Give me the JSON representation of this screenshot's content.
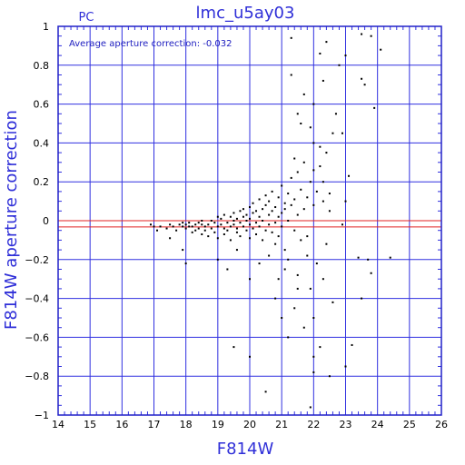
{
  "chart_data": {
    "type": "scatter",
    "title": "lmc_u5ay03",
    "corner_label": "PC",
    "xlabel": "F814W",
    "ylabel": "F814W aperture correction",
    "annotation": "Average aperture correction:  -0.032",
    "xlim": [
      14,
      26
    ],
    "ylim": [
      -1,
      1
    ],
    "x_ticks": [
      "14",
      "15",
      "16",
      "17",
      "18",
      "19",
      "20",
      "21",
      "22",
      "23",
      "24",
      "25",
      "26"
    ],
    "y_ticks": [
      "−1",
      "−0.8",
      "−0.6",
      "−0.4",
      "−0.2",
      "0",
      "0.2",
      "0.4",
      "0.6",
      "0.8",
      "1"
    ],
    "grid": true,
    "reference_lines": [
      {
        "y": 0,
        "color": "#e02020"
      },
      {
        "y": -0.032,
        "color": "#e02020"
      }
    ],
    "colors": {
      "frame": "#2020c8",
      "grid": "#3030e0",
      "points": "#000000",
      "text": "#2f2fd8"
    },
    "series": [
      {
        "points": [
          [
            16.9,
            -0.02
          ],
          [
            17.0,
            -0.03
          ],
          [
            17.1,
            -0.05
          ],
          [
            17.2,
            -0.03
          ],
          [
            17.4,
            -0.04
          ],
          [
            17.5,
            -0.02
          ],
          [
            17.5,
            -0.09
          ],
          [
            17.6,
            -0.03
          ],
          [
            17.7,
            -0.05
          ],
          [
            17.8,
            -0.02
          ],
          [
            17.9,
            -0.03
          ],
          [
            17.9,
            -0.01
          ],
          [
            18.0,
            -0.04
          ],
          [
            18.0,
            -0.02
          ],
          [
            18.1,
            -0.03
          ],
          [
            18.1,
            -0.01
          ],
          [
            18.2,
            -0.06
          ],
          [
            18.2,
            -0.03
          ],
          [
            18.3,
            -0.02
          ],
          [
            18.3,
            -0.05
          ],
          [
            18.4,
            -0.01
          ],
          [
            18.4,
            -0.04
          ],
          [
            18.5,
            -0.07
          ],
          [
            18.5,
            -0.02
          ],
          [
            18.5,
            0.0
          ],
          [
            18.6,
            -0.03
          ],
          [
            18.6,
            -0.05
          ],
          [
            18.7,
            -0.02
          ],
          [
            18.7,
            -0.08
          ],
          [
            18.8,
            0.0
          ],
          [
            18.8,
            -0.04
          ],
          [
            18.9,
            -0.01
          ],
          [
            18.9,
            -0.06
          ],
          [
            19.0,
            0.02
          ],
          [
            19.0,
            -0.03
          ],
          [
            19.0,
            -0.09
          ],
          [
            19.1,
            -0.02
          ],
          [
            19.1,
            0.01
          ],
          [
            19.2,
            -0.04
          ],
          [
            19.2,
            -0.07
          ],
          [
            19.2,
            0.03
          ],
          [
            19.3,
            -0.01
          ],
          [
            19.3,
            -0.05
          ],
          [
            19.4,
            0.02
          ],
          [
            19.4,
            -0.03
          ],
          [
            19.4,
            -0.1
          ],
          [
            19.5,
            0.04
          ],
          [
            19.5,
            -0.02
          ],
          [
            19.5,
            0.0
          ],
          [
            19.6,
            -0.06
          ],
          [
            19.6,
            0.01
          ],
          [
            19.6,
            -0.04
          ],
          [
            19.7,
            0.05
          ],
          [
            19.7,
            -0.01
          ],
          [
            19.7,
            -0.08
          ],
          [
            19.8,
            0.02
          ],
          [
            19.8,
            -0.03
          ],
          [
            19.8,
            0.06
          ],
          [
            19.9,
            -0.05
          ],
          [
            19.9,
            0.0
          ],
          [
            19.9,
            0.03
          ],
          [
            20.0,
            -0.02
          ],
          [
            20.0,
            0.07
          ],
          [
            20.0,
            -0.09
          ],
          [
            20.0,
            0.01
          ],
          [
            20.1,
            0.04
          ],
          [
            20.1,
            -0.04
          ],
          [
            20.1,
            0.09
          ],
          [
            20.2,
            -0.01
          ],
          [
            20.2,
            0.05
          ],
          [
            20.2,
            -0.07
          ],
          [
            20.3,
            0.02
          ],
          [
            20.3,
            0.11
          ],
          [
            20.3,
            -0.03
          ],
          [
            20.4,
            0.06
          ],
          [
            20.4,
            -0.1
          ],
          [
            20.4,
            0.0
          ],
          [
            20.5,
            0.08
          ],
          [
            20.5,
            -0.05
          ],
          [
            20.5,
            0.13
          ],
          [
            20.6,
            0.03
          ],
          [
            20.6,
            -0.02
          ],
          [
            20.6,
            0.1
          ],
          [
            20.7,
            -0.06
          ],
          [
            20.7,
            0.05
          ],
          [
            20.7,
            0.15
          ],
          [
            20.8,
            -0.01
          ],
          [
            20.8,
            0.07
          ],
          [
            20.8,
            -0.12
          ],
          [
            20.9,
            0.02
          ],
          [
            20.9,
            0.12
          ],
          [
            20.9,
            -0.08
          ],
          [
            21.0,
            0.04
          ],
          [
            21.0,
            0.18
          ],
          [
            21.0,
            -0.03
          ],
          [
            21.1,
            0.09
          ],
          [
            21.1,
            -0.15
          ],
          [
            21.1,
            0.06
          ],
          [
            21.2,
            0.0
          ],
          [
            21.2,
            0.14
          ],
          [
            21.2,
            -0.2
          ],
          [
            21.3,
            0.08
          ],
          [
            21.3,
            0.22
          ],
          [
            21.4,
            -0.05
          ],
          [
            21.4,
            0.11
          ],
          [
            21.5,
            0.03
          ],
          [
            21.5,
            0.25
          ],
          [
            21.5,
            -0.28
          ],
          [
            21.6,
            0.16
          ],
          [
            21.6,
            -0.1
          ],
          [
            21.7,
            0.06
          ],
          [
            21.7,
            0.3
          ],
          [
            21.8,
            -0.18
          ],
          [
            21.8,
            0.12
          ],
          [
            21.9,
            0.2
          ],
          [
            21.9,
            -0.35
          ],
          [
            22.0,
            0.08
          ],
          [
            22.0,
            0.4
          ],
          [
            22.1,
            -0.22
          ],
          [
            22.1,
            0.15
          ],
          [
            22.2,
            0.28
          ],
          [
            22.3,
            -0.3
          ],
          [
            22.3,
            0.1
          ],
          [
            22.4,
            0.35
          ],
          [
            22.5,
            0.05
          ],
          [
            22.6,
            0.45
          ],
          [
            19.0,
            -0.2
          ],
          [
            19.3,
            -0.25
          ],
          [
            19.6,
            -0.15
          ],
          [
            20.0,
            -0.3
          ],
          [
            20.3,
            -0.22
          ],
          [
            20.6,
            -0.18
          ],
          [
            20.8,
            -0.4
          ],
          [
            21.0,
            -0.5
          ],
          [
            21.2,
            -0.6
          ],
          [
            21.4,
            -0.45
          ],
          [
            21.7,
            -0.55
          ],
          [
            22.0,
            -0.7
          ],
          [
            22.2,
            -0.65
          ],
          [
            22.5,
            -0.8
          ],
          [
            19.5,
            -0.65
          ],
          [
            20.0,
            -0.7
          ],
          [
            20.5,
            -0.88
          ],
          [
            21.9,
            -0.96
          ],
          [
            22.0,
            -0.78
          ],
          [
            23.0,
            -0.75
          ],
          [
            23.2,
            -0.64
          ],
          [
            21.3,
            0.75
          ],
          [
            21.5,
            0.55
          ],
          [
            21.7,
            0.65
          ],
          [
            21.9,
            0.48
          ],
          [
            22.0,
            0.6
          ],
          [
            22.3,
            0.72
          ],
          [
            22.4,
            0.92
          ],
          [
            21.3,
            0.94
          ],
          [
            22.8,
            0.8
          ],
          [
            23.0,
            0.85
          ],
          [
            23.1,
            0.23
          ],
          [
            23.5,
            0.96
          ],
          [
            23.8,
            0.95
          ],
          [
            24.1,
            0.88
          ],
          [
            23.5,
            0.73
          ],
          [
            23.6,
            0.7
          ],
          [
            23.9,
            0.58
          ],
          [
            23.4,
            -0.19
          ],
          [
            23.7,
            -0.2
          ],
          [
            23.8,
            -0.27
          ],
          [
            24.4,
            -0.19
          ],
          [
            23.5,
            -0.4
          ],
          [
            22.2,
            0.86
          ],
          [
            22.7,
            0.55
          ],
          [
            22.9,
            0.45
          ],
          [
            22.2,
            0.38
          ],
          [
            21.6,
            0.5
          ],
          [
            21.4,
            0.32
          ],
          [
            22.0,
            0.26
          ],
          [
            22.3,
            0.2
          ],
          [
            22.5,
            0.14
          ],
          [
            22.9,
            -0.02
          ],
          [
            23.0,
            0.1
          ],
          [
            18.0,
            -0.22
          ],
          [
            17.9,
            -0.15
          ],
          [
            21.8,
            -0.08
          ],
          [
            22.4,
            -0.12
          ],
          [
            22.6,
            -0.42
          ],
          [
            22.0,
            -0.5
          ],
          [
            21.5,
            -0.35
          ],
          [
            21.1,
            -0.25
          ],
          [
            20.9,
            -0.3
          ]
        ]
      }
    ]
  }
}
